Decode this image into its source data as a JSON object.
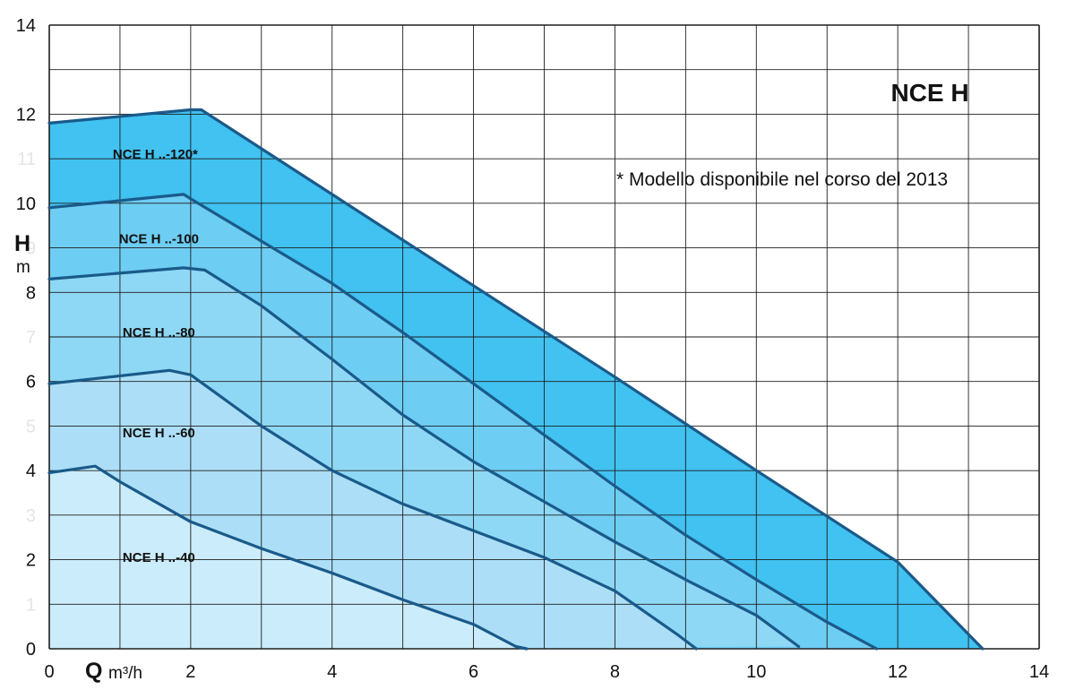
{
  "chart_data": {
    "type": "area",
    "title": "NCE H",
    "note": "* Modello disponibile nel corso del 2013",
    "xlabel": {
      "symbol": "Q",
      "unit": "m³/h"
    },
    "ylabel": {
      "symbol": "H",
      "unit": "m"
    },
    "xlim": [
      0,
      14
    ],
    "ylim": [
      0,
      14
    ],
    "x_ticks": [
      "0",
      "2",
      "4",
      "6",
      "8",
      "10",
      "12",
      "14"
    ],
    "y_ticks": [
      {
        "value": 0,
        "label": "0",
        "faint": false
      },
      {
        "value": 1,
        "label": "1",
        "faint": true
      },
      {
        "value": 2,
        "label": "2",
        "faint": false
      },
      {
        "value": 3,
        "label": "3",
        "faint": true
      },
      {
        "value": 4,
        "label": "4",
        "faint": false
      },
      {
        "value": 5,
        "label": "5",
        "faint": true
      },
      {
        "value": 6,
        "label": "6",
        "faint": false
      },
      {
        "value": 7,
        "label": "7",
        "faint": true
      },
      {
        "value": 8,
        "label": "8",
        "faint": false
      },
      {
        "value": 9,
        "label": "9",
        "faint": true
      },
      {
        "value": 10,
        "label": "10",
        "faint": false
      },
      {
        "value": 11,
        "label": "11",
        "faint": true
      },
      {
        "value": 12,
        "label": "12",
        "faint": false
      },
      {
        "value": 14,
        "label": "14",
        "faint": false
      }
    ],
    "grid": true,
    "series": [
      {
        "name": "NCE H ..-120*",
        "fill": "#41c2f1",
        "label_at": [
          1.5,
          11.1
        ],
        "points": [
          [
            0,
            11.8
          ],
          [
            2.0,
            12.1
          ],
          [
            2.15,
            12.1
          ],
          [
            4.0,
            10.2
          ],
          [
            6.0,
            8.15
          ],
          [
            8.0,
            6.1
          ],
          [
            10.0,
            4.0
          ],
          [
            12.0,
            1.95
          ],
          [
            13.2,
            0.0
          ]
        ]
      },
      {
        "name": "NCE H ..-100",
        "fill": "#6ecdf3",
        "label_at": [
          1.55,
          9.2
        ],
        "points": [
          [
            0,
            9.9
          ],
          [
            1.9,
            10.2
          ],
          [
            2.0,
            10.1
          ],
          [
            3.0,
            9.15
          ],
          [
            4.0,
            8.2
          ],
          [
            5.0,
            7.1
          ],
          [
            6.0,
            5.95
          ],
          [
            7.0,
            4.8
          ],
          [
            8.0,
            3.65
          ],
          [
            9.0,
            2.55
          ],
          [
            10.0,
            1.55
          ],
          [
            11.0,
            0.6
          ],
          [
            11.7,
            0.0
          ]
        ]
      },
      {
        "name": "NCE H ..-80",
        "fill": "#8ed8f5",
        "label_at": [
          1.55,
          7.1
        ],
        "points": [
          [
            0,
            8.3
          ],
          [
            1.9,
            8.55
          ],
          [
            2.2,
            8.5
          ],
          [
            3.0,
            7.7
          ],
          [
            4.0,
            6.5
          ],
          [
            5.0,
            5.25
          ],
          [
            6.0,
            4.2
          ],
          [
            7.0,
            3.3
          ],
          [
            8.0,
            2.4
          ],
          [
            9.0,
            1.55
          ],
          [
            10.0,
            0.75
          ],
          [
            10.6,
            0.05
          ]
        ]
      },
      {
        "name": "NCE H ..-60",
        "fill": "#acdff7",
        "label_at": [
          1.55,
          4.85
        ],
        "points": [
          [
            0,
            5.95
          ],
          [
            1.7,
            6.25
          ],
          [
            2.0,
            6.15
          ],
          [
            3.0,
            5.0
          ],
          [
            4.0,
            4.0
          ],
          [
            5.0,
            3.25
          ],
          [
            6.0,
            2.65
          ],
          [
            7.0,
            2.05
          ],
          [
            8.0,
            1.3
          ],
          [
            8.9,
            0.3
          ],
          [
            9.15,
            0.0
          ]
        ]
      },
      {
        "name": "NCE H ..-40",
        "fill": "#cbecfa",
        "label_at": [
          1.55,
          2.05
        ],
        "points": [
          [
            0,
            3.95
          ],
          [
            0.65,
            4.1
          ],
          [
            1.0,
            3.75
          ],
          [
            2.0,
            2.85
          ],
          [
            3.0,
            2.25
          ],
          [
            4.0,
            1.7
          ],
          [
            5.0,
            1.1
          ],
          [
            6.0,
            0.55
          ],
          [
            6.6,
            0.05
          ],
          [
            6.75,
            0.0
          ]
        ]
      }
    ],
    "stroke_color": "#1a5a8a",
    "grid_color": "#1e1e1e"
  }
}
